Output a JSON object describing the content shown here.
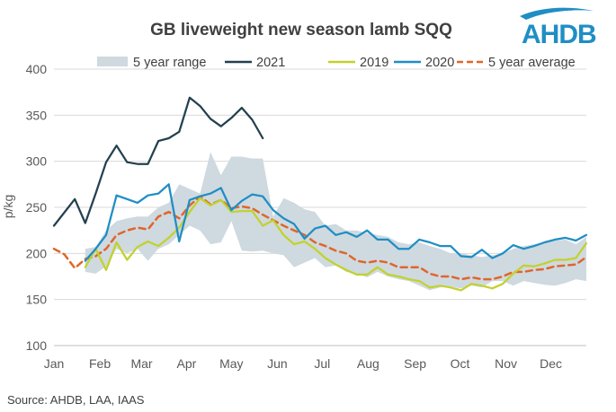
{
  "chart_data": {
    "type": "line",
    "title": "GB liveweight new season lamb SQQ",
    "xlabel": "",
    "ylabel": "p/kg",
    "ylim": [
      100,
      400
    ],
    "yticks": [
      100,
      150,
      200,
      250,
      300,
      350,
      400
    ],
    "grid": true,
    "legend_position": "top",
    "x_unit": "week of year",
    "xlim": [
      1,
      52
    ],
    "months": [
      {
        "label": "Jan",
        "week": 1
      },
      {
        "label": "Feb",
        "week": 5.4
      },
      {
        "label": "Mar",
        "week": 9.4
      },
      {
        "label": "Apr",
        "week": 13.7
      },
      {
        "label": "May",
        "week": 18.0
      },
      {
        "label": "Jun",
        "week": 22.4
      },
      {
        "label": "Jul",
        "week": 26.7
      },
      {
        "label": "Aug",
        "week": 31.1
      },
      {
        "label": "Sep",
        "week": 35.6
      },
      {
        "label": "Oct",
        "week": 39.9
      },
      {
        "label": "Nov",
        "week": 44.3
      },
      {
        "label": "Dec",
        "week": 48.6
      }
    ],
    "range": {
      "name": "5 year range",
      "color": "#cfd9e0",
      "x": [
        4,
        5,
        6,
        7,
        8,
        9,
        10,
        11,
        12,
        13,
        14,
        15,
        16,
        17,
        18,
        19,
        20,
        21,
        22,
        23,
        24,
        25,
        26,
        27,
        28,
        29,
        30,
        31,
        32,
        33,
        34,
        35,
        36,
        37,
        38,
        39,
        40,
        41,
        42,
        43,
        44,
        45,
        46,
        47,
        48,
        49,
        50,
        51,
        52
      ],
      "low": [
        180,
        178,
        186,
        205,
        200,
        205,
        192,
        205,
        210,
        220,
        230,
        225,
        210,
        212,
        235,
        203,
        202,
        203,
        200,
        198,
        185,
        190,
        195,
        185,
        187,
        180,
        178,
        174,
        180,
        175,
        172,
        170,
        165,
        160,
        163,
        164,
        162,
        165,
        163,
        170,
        170,
        165,
        170,
        168,
        166,
        165,
        168,
        172,
        170
      ],
      "high": [
        205,
        207,
        225,
        235,
        238,
        240,
        240,
        250,
        255,
        275,
        270,
        265,
        310,
        285,
        305,
        305,
        303,
        303,
        240,
        260,
        255,
        248,
        245,
        230,
        232,
        225,
        225,
        222,
        220,
        218,
        212,
        210,
        212,
        208,
        205,
        200,
        200,
        198,
        196,
        198,
        200,
        205,
        208,
        210,
        212,
        214,
        215,
        210,
        218
      ]
    },
    "series": [
      {
        "name": "2021",
        "color": "#23404f",
        "dashed": false,
        "x": [
          1,
          3,
          4,
          5,
          6,
          7,
          8,
          9,
          10,
          11,
          12,
          13,
          14,
          15,
          16,
          17,
          18,
          19,
          20,
          21
        ],
        "values": [
          230,
          259,
          233,
          265,
          299,
          317,
          299,
          297,
          297,
          322,
          325,
          332,
          369,
          360,
          346,
          338,
          347,
          358,
          345,
          325
        ]
      },
      {
        "name": "2019",
        "color": "#c1d22b",
        "dashed": false,
        "x": [
          4,
          5,
          6,
          7,
          8,
          9,
          10,
          11,
          12,
          13,
          14,
          15,
          16,
          17,
          18,
          19,
          20,
          21,
          22,
          23,
          24,
          25,
          26,
          27,
          28,
          29,
          30,
          31,
          32,
          33,
          34,
          35,
          36,
          37,
          38,
          39,
          40,
          41,
          42,
          43,
          44,
          45,
          46,
          47,
          48,
          49,
          50,
          51,
          52
        ],
        "values": [
          185,
          205,
          182,
          212,
          193,
          207,
          213,
          208,
          217,
          228,
          245,
          260,
          252,
          258,
          245,
          246,
          246,
          230,
          236,
          220,
          210,
          213,
          205,
          195,
          188,
          182,
          177,
          177,
          185,
          177,
          175,
          172,
          170,
          163,
          165,
          163,
          160,
          167,
          165,
          162,
          167,
          178,
          187,
          186,
          189,
          193,
          193,
          195,
          211
        ]
      },
      {
        "name": "2020",
        "color": "#1f8ec4",
        "dashed": false,
        "x": [
          4,
          5,
          6,
          7,
          8,
          9,
          10,
          11,
          12,
          13,
          14,
          15,
          16,
          17,
          18,
          19,
          20,
          21,
          22,
          23,
          24,
          25,
          26,
          27,
          28,
          29,
          30,
          31,
          32,
          33,
          34,
          35,
          36,
          37,
          38,
          39,
          40,
          41,
          42,
          43,
          44,
          45,
          46,
          47,
          48,
          49,
          50,
          51,
          52
        ],
        "values": [
          192,
          205,
          220,
          263,
          259,
          255,
          263,
          265,
          275,
          213,
          258,
          262,
          265,
          271,
          247,
          257,
          264,
          262,
          247,
          238,
          232,
          216,
          227,
          230,
          220,
          223,
          218,
          225,
          215,
          215,
          205,
          205,
          215,
          212,
          208,
          208,
          197,
          196,
          204,
          195,
          200,
          209,
          205,
          208,
          212,
          215,
          217,
          214,
          220
        ]
      },
      {
        "name": "5 year average",
        "color": "#e0662a",
        "dashed": true,
        "x": [
          1,
          2,
          3,
          4,
          5,
          6,
          7,
          8,
          9,
          10,
          11,
          12,
          13,
          14,
          15,
          16,
          17,
          18,
          19,
          20,
          21,
          22,
          23,
          24,
          25,
          26,
          27,
          28,
          29,
          30,
          31,
          32,
          33,
          34,
          35,
          36,
          37,
          38,
          39,
          40,
          41,
          42,
          43,
          44,
          45,
          46,
          47,
          48,
          49,
          50,
          51,
          52
        ],
        "values": [
          205,
          199,
          184,
          194,
          197,
          205,
          220,
          225,
          228,
          226,
          240,
          245,
          238,
          252,
          262,
          253,
          258,
          249,
          251,
          249,
          242,
          236,
          230,
          225,
          220,
          212,
          208,
          203,
          200,
          192,
          190,
          192,
          190,
          185,
          185,
          185,
          178,
          175,
          175,
          172,
          174,
          172,
          172,
          175,
          180,
          180,
          182,
          183,
          186,
          187,
          188,
          196
        ]
      }
    ],
    "source": "Source: AHDB, LAA, IAAS"
  },
  "logo": {
    "text": "AHDB",
    "color": "#1f8ec4"
  }
}
